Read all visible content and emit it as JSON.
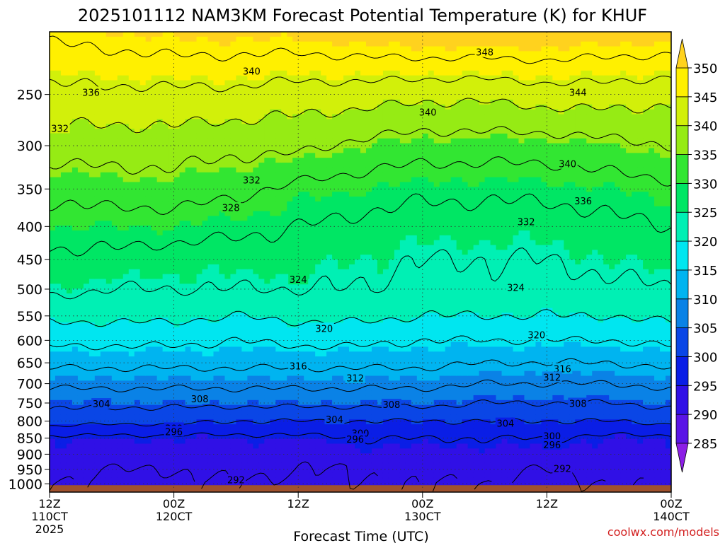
{
  "chart_data": {
    "type": "heatmap",
    "title": "2025101112 NAM3KM Forecast Potential Temperature (K) for KHUF",
    "xlabel": "Forecast Time (UTC)",
    "ylabel": "",
    "credit": "coolwx.com/models",
    "x_range_hours": [
      0,
      60
    ],
    "x_ticks": [
      {
        "hour": 0,
        "line1": "12Z",
        "line2": "110CT",
        "line3": "2025"
      },
      {
        "hour": 12,
        "line1": "00Z",
        "line2": "120CT",
        "line3": ""
      },
      {
        "hour": 24,
        "line1": "12Z",
        "line2": "",
        "line3": ""
      },
      {
        "hour": 36,
        "line1": "00Z",
        "line2": "130CT",
        "line3": ""
      },
      {
        "hour": 48,
        "line1": "12Z",
        "line2": "",
        "line3": ""
      },
      {
        "hour": 60,
        "line1": "00Z",
        "line2": "140CT",
        "line3": ""
      }
    ],
    "y_axis": {
      "unit": "hPa",
      "range": [
        1030,
        200
      ],
      "scale": "log"
    },
    "y_ticks": [
      "250",
      "300",
      "350",
      "400",
      "450",
      "500",
      "550",
      "600",
      "650",
      "700",
      "750",
      "800",
      "850",
      "900",
      "950",
      "1000"
    ],
    "colorbar": {
      "levels": [
        285,
        290,
        295,
        300,
        305,
        310,
        315,
        320,
        325,
        330,
        335,
        340,
        345,
        350
      ],
      "labels": [
        "285",
        "290",
        "295",
        "300",
        "305",
        "310",
        "315",
        "320",
        "325",
        "330",
        "335",
        "340",
        "345",
        "350"
      ],
      "colors": [
        "#8c1ee6",
        "#5a14e6",
        "#3010e6",
        "#0a1ee6",
        "#0a46e6",
        "#0a82e6",
        "#00b4f0",
        "#00e6f0",
        "#00f0b4",
        "#00e664",
        "#32e632",
        "#96eb14",
        "#d2f00a",
        "#fff000",
        "#ffd21e"
      ]
    },
    "time_hours": [
      0,
      6,
      12,
      18,
      24,
      30,
      36,
      42,
      48,
      54,
      60
    ],
    "pressure_levels": [
      1000,
      950,
      900,
      850,
      800,
      750,
      700,
      650,
      600,
      550,
      500,
      450,
      400,
      350,
      300,
      250,
      200
    ],
    "theta_profiles_K": [
      [
        292,
        293,
        294,
        295,
        302,
        305,
        309,
        313,
        317,
        321,
        325,
        327,
        330,
        333,
        338,
        343,
        349
      ],
      [
        291,
        292,
        294,
        295,
        301,
        305,
        309,
        313,
        317,
        321,
        324,
        327,
        330,
        334,
        338,
        343,
        350
      ],
      [
        291,
        292,
        293,
        295,
        301,
        305,
        309,
        313,
        317,
        321,
        324,
        326,
        330,
        334,
        338,
        343,
        351
      ],
      [
        292,
        293,
        294,
        295,
        300,
        305,
        309,
        313,
        316,
        320,
        324,
        326,
        329,
        333,
        337,
        343,
        351
      ],
      [
        291,
        292,
        293,
        295,
        300,
        305,
        309,
        313,
        317,
        321,
        324,
        326,
        328,
        331,
        337,
        342,
        351
      ],
      [
        292,
        292,
        294,
        296,
        300,
        305,
        309,
        313,
        317,
        321,
        324,
        325,
        327,
        330,
        335,
        342,
        352
      ],
      [
        292,
        293,
        294,
        296,
        300,
        305,
        309,
        313,
        316,
        320,
        323,
        324,
        326,
        329,
        334,
        341,
        353
      ],
      [
        292,
        293,
        294,
        296,
        300,
        304,
        308,
        312,
        316,
        320,
        323,
        324,
        326,
        329,
        334,
        341,
        353
      ],
      [
        291,
        292,
        294,
        296,
        300,
        304,
        308,
        312,
        316,
        320,
        323,
        324,
        326,
        329,
        334,
        342,
        353
      ],
      [
        292,
        293,
        294,
        295,
        300,
        304,
        308,
        312,
        316,
        320,
        323,
        325,
        327,
        330,
        335,
        342,
        352
      ],
      [
        293,
        293,
        294,
        295,
        301,
        305,
        309,
        313,
        317,
        321,
        324,
        326,
        328,
        331,
        336,
        341,
        352
      ]
    ],
    "contour_levels": [
      292,
      296,
      300,
      304,
      308,
      312,
      316,
      320,
      324,
      328,
      332,
      336,
      340,
      344,
      348
    ],
    "contour_labels": [
      {
        "text": "348",
        "hour": 42.0,
        "p": 215
      },
      {
        "text": "340",
        "hour": 19.5,
        "p": 230
      },
      {
        "text": "336",
        "hour": 4.0,
        "p": 248
      },
      {
        "text": "344",
        "hour": 51.0,
        "p": 248
      },
      {
        "text": "340",
        "hour": 36.5,
        "p": 266
      },
      {
        "text": "332",
        "hour": 1.0,
        "p": 282
      },
      {
        "text": "340",
        "hour": 50.0,
        "p": 320
      },
      {
        "text": "332",
        "hour": 19.5,
        "p": 339
      },
      {
        "text": "336",
        "hour": 51.5,
        "p": 365
      },
      {
        "text": "328",
        "hour": 17.5,
        "p": 374
      },
      {
        "text": "332",
        "hour": 46.0,
        "p": 393
      },
      {
        "text": "324",
        "hour": 24.0,
        "p": 483
      },
      {
        "text": "324",
        "hour": 45.0,
        "p": 497
      },
      {
        "text": "320",
        "hour": 26.5,
        "p": 575
      },
      {
        "text": "320",
        "hour": 47.0,
        "p": 588
      },
      {
        "text": "316",
        "hour": 24.0,
        "p": 657
      },
      {
        "text": "316",
        "hour": 49.5,
        "p": 664
      },
      {
        "text": "312",
        "hour": 29.5,
        "p": 686
      },
      {
        "text": "312",
        "hour": 48.5,
        "p": 684
      },
      {
        "text": "304",
        "hour": 5.0,
        "p": 752
      },
      {
        "text": "308",
        "hour": 14.5,
        "p": 739
      },
      {
        "text": "308",
        "hour": 33.0,
        "p": 754
      },
      {
        "text": "308",
        "hour": 51.0,
        "p": 751
      },
      {
        "text": "304",
        "hour": 27.5,
        "p": 795
      },
      {
        "text": "304",
        "hour": 44.0,
        "p": 806
      },
      {
        "text": "300",
        "hour": 12.0,
        "p": 820
      },
      {
        "text": "296",
        "hour": 12.0,
        "p": 830
      },
      {
        "text": "300",
        "hour": 30.0,
        "p": 835
      },
      {
        "text": "296",
        "hour": 29.5,
        "p": 853
      },
      {
        "text": "300",
        "hour": 48.5,
        "p": 843
      },
      {
        "text": "296",
        "hour": 48.5,
        "p": 870
      },
      {
        "text": "292",
        "hour": 18.0,
        "p": 985
      },
      {
        "text": "292",
        "hour": 49.5,
        "p": 947
      }
    ],
    "ground": {
      "label": "surface",
      "color": "#a0522d"
    }
  }
}
